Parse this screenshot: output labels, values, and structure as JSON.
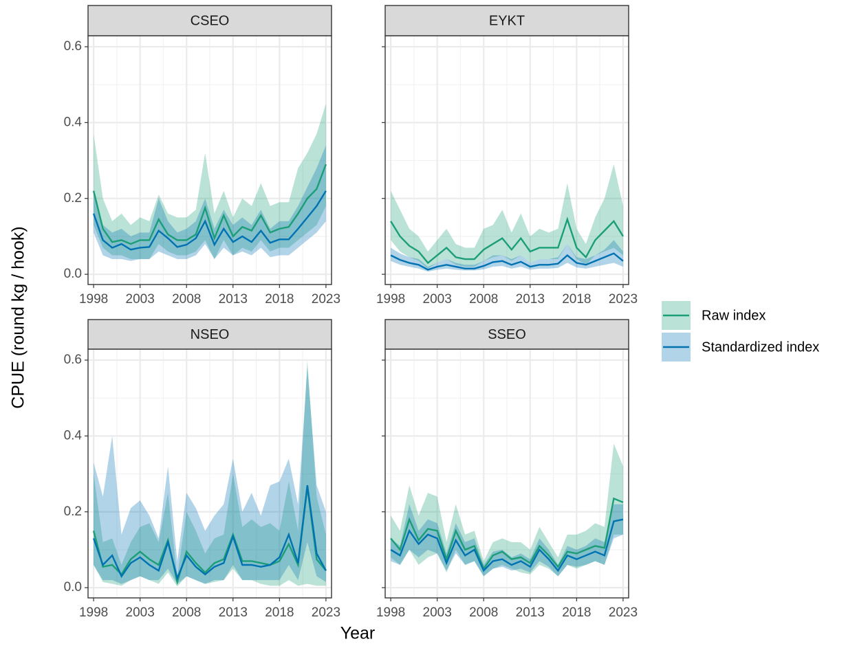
{
  "xlabel": "Year",
  "ylabel": "CPUE (round kg / hook)",
  "legend": [
    {
      "name": "Raw index",
      "color": "#1b9e77"
    },
    {
      "name": "Standardized index",
      "color": "#0072b2"
    }
  ],
  "chart_data": [
    {
      "type": "line",
      "title": "CSEO",
      "show_yticklabels": true,
      "x": [
        1998,
        1999,
        2000,
        2001,
        2002,
        2003,
        2004,
        2005,
        2006,
        2007,
        2008,
        2009,
        2010,
        2011,
        2012,
        2013,
        2014,
        2015,
        2016,
        2017,
        2018,
        2019,
        2020,
        2021,
        2022,
        2023
      ],
      "xlim": [
        1997.4,
        2023.6
      ],
      "xticks": [
        1998,
        2003,
        2008,
        2013,
        2018,
        2023
      ],
      "xminor": [
        2000.5,
        2005.5,
        2010.5,
        2015.5,
        2020.5
      ],
      "ylim": [
        -0.027,
        0.629
      ],
      "yticks": [
        {
          "value": 0,
          "label": "0.0"
        },
        0.2,
        0.4,
        0.6
      ],
      "yminor": [
        0.1,
        0.3,
        0.5
      ],
      "grid": true,
      "series": [
        {
          "color": "#1b9e77",
          "values": [
            0.22,
            0.12,
            0.085,
            0.09,
            0.08,
            0.09,
            0.09,
            0.145,
            0.105,
            0.09,
            0.09,
            0.105,
            0.175,
            0.095,
            0.155,
            0.1,
            0.125,
            0.115,
            0.155,
            0.11,
            0.12,
            0.125,
            0.16,
            0.2,
            0.225,
            0.29
          ],
          "upper": [
            0.37,
            0.2,
            0.14,
            0.16,
            0.13,
            0.15,
            0.14,
            0.21,
            0.16,
            0.15,
            0.15,
            0.17,
            0.32,
            0.16,
            0.22,
            0.15,
            0.2,
            0.18,
            0.24,
            0.18,
            0.19,
            0.19,
            0.28,
            0.32,
            0.37,
            0.45
          ],
          "lower": [
            0.13,
            0.07,
            0.05,
            0.05,
            0.04,
            0.04,
            0.04,
            0.08,
            0.06,
            0.05,
            0.05,
            0.06,
            0.09,
            0.04,
            0.09,
            0.05,
            0.07,
            0.06,
            0.09,
            0.06,
            0.07,
            0.07,
            0.09,
            0.11,
            0.13,
            0.18
          ]
        },
        {
          "color": "#0072b2",
          "values": [
            0.16,
            0.09,
            0.07,
            0.08,
            0.065,
            0.07,
            0.072,
            0.115,
            0.095,
            0.072,
            0.078,
            0.095,
            0.14,
            0.078,
            0.12,
            0.085,
            0.1,
            0.085,
            0.115,
            0.083,
            0.092,
            0.092,
            0.12,
            0.15,
            0.18,
            0.22
          ],
          "upper": [
            0.22,
            0.13,
            0.11,
            0.12,
            0.1,
            0.11,
            0.11,
            0.2,
            0.14,
            0.11,
            0.12,
            0.14,
            0.2,
            0.12,
            0.17,
            0.13,
            0.15,
            0.13,
            0.17,
            0.12,
            0.14,
            0.14,
            0.18,
            0.23,
            0.28,
            0.34
          ],
          "lower": [
            0.11,
            0.05,
            0.04,
            0.04,
            0.035,
            0.04,
            0.04,
            0.06,
            0.05,
            0.04,
            0.04,
            0.05,
            0.08,
            0.04,
            0.07,
            0.05,
            0.06,
            0.05,
            0.07,
            0.045,
            0.05,
            0.05,
            0.07,
            0.09,
            0.11,
            0.14
          ]
        }
      ]
    },
    {
      "type": "line",
      "title": "EYKT",
      "show_yticklabels": false,
      "x": [
        1998,
        1999,
        2000,
        2001,
        2002,
        2003,
        2004,
        2005,
        2006,
        2007,
        2008,
        2009,
        2010,
        2011,
        2012,
        2013,
        2014,
        2015,
        2016,
        2017,
        2018,
        2019,
        2020,
        2021,
        2022,
        2023
      ],
      "xlim": [
        1997.4,
        2023.6
      ],
      "xticks": [
        1998,
        2003,
        2008,
        2013,
        2018,
        2023
      ],
      "xminor": [
        2000.5,
        2005.5,
        2010.5,
        2015.5,
        2020.5
      ],
      "ylim": [
        -0.027,
        0.629
      ],
      "yticks": [
        0,
        0.2,
        0.4,
        0.6
      ],
      "yminor": [
        0.1,
        0.3,
        0.5
      ],
      "grid": true,
      "series": [
        {
          "color": "#1b9e77",
          "values": [
            0.14,
            0.1,
            0.075,
            0.06,
            0.03,
            0.05,
            0.07,
            0.045,
            0.04,
            0.04,
            0.065,
            0.08,
            0.095,
            0.065,
            0.095,
            0.06,
            0.07,
            0.07,
            0.07,
            0.145,
            0.07,
            0.045,
            0.09,
            0.115,
            0.14,
            0.1
          ],
          "upper": [
            0.22,
            0.17,
            0.12,
            0.1,
            0.06,
            0.09,
            0.12,
            0.08,
            0.07,
            0.07,
            0.12,
            0.13,
            0.17,
            0.11,
            0.16,
            0.1,
            0.12,
            0.11,
            0.12,
            0.24,
            0.12,
            0.08,
            0.15,
            0.2,
            0.29,
            0.18
          ],
          "lower": [
            0.09,
            0.06,
            0.045,
            0.035,
            0.015,
            0.03,
            0.04,
            0.025,
            0.02,
            0.02,
            0.035,
            0.045,
            0.05,
            0.035,
            0.05,
            0.03,
            0.04,
            0.04,
            0.04,
            0.08,
            0.04,
            0.025,
            0.05,
            0.06,
            0.07,
            0.05
          ]
        },
        {
          "color": "#0072b2",
          "values": [
            0.05,
            0.038,
            0.03,
            0.025,
            0.012,
            0.02,
            0.025,
            0.02,
            0.015,
            0.015,
            0.022,
            0.032,
            0.035,
            0.025,
            0.033,
            0.02,
            0.025,
            0.025,
            0.028,
            0.05,
            0.03,
            0.025,
            0.035,
            0.045,
            0.055,
            0.035
          ],
          "upper": [
            0.07,
            0.055,
            0.045,
            0.04,
            0.02,
            0.03,
            0.04,
            0.03,
            0.025,
            0.025,
            0.035,
            0.05,
            0.05,
            0.04,
            0.05,
            0.03,
            0.04,
            0.04,
            0.045,
            0.08,
            0.045,
            0.04,
            0.05,
            0.065,
            0.09,
            0.06
          ],
          "lower": [
            0.035,
            0.025,
            0.02,
            0.015,
            0.007,
            0.012,
            0.015,
            0.012,
            0.01,
            0.01,
            0.013,
            0.02,
            0.022,
            0.015,
            0.02,
            0.012,
            0.015,
            0.015,
            0.017,
            0.03,
            0.018,
            0.015,
            0.02,
            0.025,
            0.03,
            0.02
          ]
        }
      ]
    },
    {
      "type": "line",
      "title": "NSEO",
      "show_yticklabels": true,
      "x": [
        1998,
        1999,
        2000,
        2001,
        2002,
        2003,
        2004,
        2005,
        2006,
        2007,
        2008,
        2009,
        2010,
        2011,
        2012,
        2013,
        2014,
        2015,
        2016,
        2017,
        2018,
        2019,
        2020,
        2021,
        2022,
        2023
      ],
      "xlim": [
        1997.4,
        2023.6
      ],
      "xticks": [
        1998,
        2003,
        2008,
        2013,
        2018,
        2023
      ],
      "xminor": [
        2000.5,
        2005.5,
        2010.5,
        2015.5,
        2020.5
      ],
      "ylim": [
        -0.027,
        0.629
      ],
      "yticks": [
        {
          "value": 0,
          "label": "0.0"
        },
        0.2,
        0.4,
        0.6
      ],
      "yminor": [
        0.1,
        0.3,
        0.5
      ],
      "grid": true,
      "series": [
        {
          "color": "#1b9e77",
          "values": [
            0.15,
            0.055,
            0.06,
            0.035,
            0.075,
            0.095,
            0.075,
            0.06,
            0.125,
            0.015,
            0.095,
            0.065,
            0.04,
            0.065,
            0.075,
            0.14,
            0.07,
            0.07,
            0.065,
            0.06,
            0.07,
            0.115,
            0.06,
            0.265,
            0.075,
            0.045
          ],
          "upper": [
            0.3,
            0.12,
            0.13,
            0.06,
            0.12,
            0.16,
            0.17,
            0.12,
            0.25,
            0.03,
            0.2,
            0.15,
            0.09,
            0.13,
            0.14,
            0.3,
            0.16,
            0.18,
            0.16,
            0.17,
            0.15,
            0.28,
            0.15,
            0.6,
            0.24,
            0.14
          ],
          "lower": [
            0.06,
            0.015,
            0.01,
            0.005,
            0.02,
            0.03,
            0.02,
            0.01,
            0.04,
            0.003,
            0.03,
            0.02,
            0.01,
            0.015,
            0.02,
            0.05,
            0.02,
            0.02,
            0.01,
            0.005,
            0.005,
            0.02,
            0.005,
            0.01,
            0.005,
            0.005
          ]
        },
        {
          "color": "#0072b2",
          "values": [
            0.13,
            0.06,
            0.085,
            0.03,
            0.065,
            0.08,
            0.06,
            0.045,
            0.12,
            0.025,
            0.085,
            0.055,
            0.035,
            0.055,
            0.065,
            0.135,
            0.06,
            0.06,
            0.055,
            0.06,
            0.08,
            0.14,
            0.065,
            0.27,
            0.09,
            0.045
          ],
          "upper": [
            0.33,
            0.24,
            0.4,
            0.14,
            0.21,
            0.23,
            0.19,
            0.13,
            0.32,
            0.07,
            0.25,
            0.21,
            0.15,
            0.19,
            0.22,
            0.34,
            0.2,
            0.25,
            0.19,
            0.27,
            0.28,
            0.34,
            0.22,
            0.58,
            0.27,
            0.2
          ],
          "lower": [
            0.06,
            0.02,
            0.02,
            0.01,
            0.02,
            0.03,
            0.02,
            0.02,
            0.05,
            0.01,
            0.03,
            0.02,
            0.01,
            0.02,
            0.02,
            0.06,
            0.02,
            0.02,
            0.02,
            0.02,
            0.02,
            0.06,
            0.02,
            0.12,
            0.03,
            0.015
          ]
        }
      ]
    },
    {
      "type": "line",
      "title": "SSEO",
      "show_yticklabels": false,
      "x": [
        1998,
        1999,
        2000,
        2001,
        2002,
        2003,
        2004,
        2005,
        2006,
        2007,
        2008,
        2009,
        2010,
        2011,
        2012,
        2013,
        2014,
        2015,
        2016,
        2017,
        2018,
        2019,
        2020,
        2021,
        2022,
        2023
      ],
      "xlim": [
        1997.4,
        2023.6
      ],
      "xticks": [
        1998,
        2003,
        2008,
        2013,
        2018,
        2023
      ],
      "xminor": [
        2000.5,
        2005.5,
        2010.5,
        2015.5,
        2020.5
      ],
      "ylim": [
        -0.027,
        0.629
      ],
      "yticks": [
        0,
        0.2,
        0.4,
        0.6
      ],
      "yminor": [
        0.1,
        0.3,
        0.5
      ],
      "grid": true,
      "series": [
        {
          "color": "#1b9e77",
          "values": [
            0.13,
            0.1,
            0.18,
            0.125,
            0.155,
            0.15,
            0.075,
            0.15,
            0.1,
            0.11,
            0.05,
            0.085,
            0.095,
            0.075,
            0.08,
            0.065,
            0.11,
            0.085,
            0.055,
            0.095,
            0.09,
            0.1,
            0.11,
            0.105,
            0.235,
            0.225
          ],
          "upper": [
            0.19,
            0.15,
            0.27,
            0.19,
            0.25,
            0.24,
            0.12,
            0.22,
            0.14,
            0.15,
            0.07,
            0.12,
            0.13,
            0.12,
            0.12,
            0.1,
            0.16,
            0.12,
            0.08,
            0.14,
            0.14,
            0.15,
            0.17,
            0.16,
            0.38,
            0.32
          ],
          "lower": [
            0.08,
            0.06,
            0.1,
            0.06,
            0.08,
            0.09,
            0.04,
            0.1,
            0.06,
            0.07,
            0.03,
            0.05,
            0.06,
            0.05,
            0.04,
            0.035,
            0.06,
            0.05,
            0.03,
            0.06,
            0.05,
            0.06,
            0.07,
            0.06,
            0.14,
            0.14
          ]
        },
        {
          "color": "#0072b2",
          "values": [
            0.1,
            0.085,
            0.15,
            0.115,
            0.14,
            0.13,
            0.065,
            0.125,
            0.085,
            0.1,
            0.045,
            0.07,
            0.075,
            0.06,
            0.07,
            0.055,
            0.1,
            0.075,
            0.045,
            0.085,
            0.075,
            0.085,
            0.095,
            0.085,
            0.175,
            0.18
          ],
          "upper": [
            0.13,
            0.11,
            0.22,
            0.15,
            0.18,
            0.17,
            0.09,
            0.17,
            0.12,
            0.13,
            0.06,
            0.095,
            0.1,
            0.08,
            0.09,
            0.075,
            0.13,
            0.1,
            0.06,
            0.11,
            0.1,
            0.11,
            0.13,
            0.12,
            0.22,
            0.22
          ],
          "lower": [
            0.07,
            0.06,
            0.1,
            0.08,
            0.1,
            0.09,
            0.045,
            0.09,
            0.06,
            0.07,
            0.03,
            0.05,
            0.055,
            0.045,
            0.05,
            0.04,
            0.07,
            0.055,
            0.03,
            0.06,
            0.055,
            0.06,
            0.07,
            0.06,
            0.13,
            0.14
          ]
        }
      ]
    }
  ]
}
